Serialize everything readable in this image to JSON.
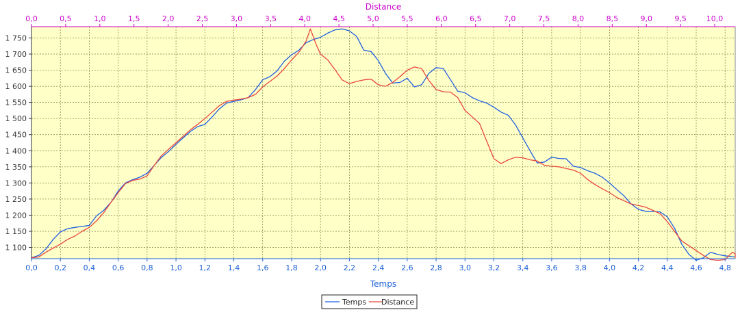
{
  "chart_data": {
    "type": "line",
    "xlabel_bottom": "Temps",
    "xlabel_top": "Distance",
    "ylabel": "",
    "colors": {
      "plot_background": "#ffffc8",
      "grid": "#7a7a4a",
      "bottom_axis": "#1a5fd6",
      "top_axis": "#cc00cc",
      "temps_series": "#1f5fe0",
      "distance_series": "#e8463c"
    },
    "grid": true,
    "legend_placement": "bottom-center",
    "bottom_axis": {
      "range": [
        0,
        4.87
      ],
      "ticks": [
        "0,0",
        "0,2",
        "0,4",
        "0,6",
        "0,8",
        "1,0",
        "1,2",
        "1,4",
        "1,6",
        "1,8",
        "2,0",
        "2,2",
        "2,4",
        "2,6",
        "2,8",
        "3,0",
        "3,2",
        "3,4",
        "3,6",
        "3,8",
        "4,0",
        "4,2",
        "4,4",
        "4,6",
        "4,8"
      ],
      "tick_values": [
        0,
        0.2,
        0.4,
        0.6,
        0.8,
        1.0,
        1.2,
        1.4,
        1.6,
        1.8,
        2.0,
        2.2,
        2.4,
        2.6,
        2.8,
        3.0,
        3.2,
        3.4,
        3.6,
        3.8,
        4.0,
        4.2,
        4.4,
        4.6,
        4.8
      ]
    },
    "top_axis": {
      "range": [
        0,
        10.3
      ],
      "ticks": [
        "0,0",
        "0,5",
        "1,0",
        "1,5",
        "2,0",
        "2,5",
        "3,0",
        "3,5",
        "4,0",
        "4,5",
        "5,0",
        "5,5",
        "6,0",
        "6,5",
        "7,0",
        "7,5",
        "8,0",
        "8,5",
        "9,0",
        "9,5",
        "10,0"
      ],
      "tick_values": [
        0,
        0.5,
        1.0,
        1.5,
        2.0,
        2.5,
        3.0,
        3.5,
        4.0,
        4.5,
        5.0,
        5.5,
        6.0,
        6.5,
        7.0,
        7.5,
        8.0,
        8.5,
        9.0,
        9.5,
        10.0
      ]
    },
    "y_axis": {
      "range": [
        1065,
        1785
      ],
      "ticks": [
        "1 100",
        "1 150",
        "1 200",
        "1 250",
        "1 300",
        "1 350",
        "1 400",
        "1 450",
        "1 500",
        "1 550",
        "1 600",
        "1 650",
        "1 700",
        "1 750"
      ],
      "tick_values": [
        1100,
        1150,
        1200,
        1250,
        1300,
        1350,
        1400,
        1450,
        1500,
        1550,
        1600,
        1650,
        1700,
        1750
      ]
    },
    "series": [
      {
        "name": "Temps",
        "axis": "bottom",
        "points": [
          [
            0,
            1068
          ],
          [
            0.05,
            1075
          ],
          [
            0.1,
            1095
          ],
          [
            0.15,
            1125
          ],
          [
            0.2,
            1148
          ],
          [
            0.25,
            1158
          ],
          [
            0.3,
            1162
          ],
          [
            0.35,
            1165
          ],
          [
            0.4,
            1168
          ],
          [
            0.45,
            1198
          ],
          [
            0.5,
            1215
          ],
          [
            0.55,
            1240
          ],
          [
            0.6,
            1275
          ],
          [
            0.65,
            1300
          ],
          [
            0.7,
            1310
          ],
          [
            0.75,
            1318
          ],
          [
            0.8,
            1330
          ],
          [
            0.85,
            1355
          ],
          [
            0.9,
            1380
          ],
          [
            0.95,
            1398
          ],
          [
            1.0,
            1420
          ],
          [
            1.05,
            1440
          ],
          [
            1.1,
            1460
          ],
          [
            1.15,
            1475
          ],
          [
            1.2,
            1482
          ],
          [
            1.25,
            1505
          ],
          [
            1.3,
            1530
          ],
          [
            1.35,
            1548
          ],
          [
            1.4,
            1553
          ],
          [
            1.45,
            1558
          ],
          [
            1.5,
            1565
          ],
          [
            1.55,
            1590
          ],
          [
            1.6,
            1620
          ],
          [
            1.65,
            1630
          ],
          [
            1.7,
            1648
          ],
          [
            1.75,
            1678
          ],
          [
            1.8,
            1698
          ],
          [
            1.85,
            1712
          ],
          [
            1.9,
            1735
          ],
          [
            1.95,
            1745
          ],
          [
            2.0,
            1752
          ],
          [
            2.05,
            1765
          ],
          [
            2.1,
            1775
          ],
          [
            2.15,
            1778
          ],
          [
            2.2,
            1772
          ],
          [
            2.25,
            1755
          ],
          [
            2.3,
            1712
          ],
          [
            2.35,
            1708
          ],
          [
            2.4,
            1680
          ],
          [
            2.45,
            1640
          ],
          [
            2.5,
            1610
          ],
          [
            2.55,
            1612
          ],
          [
            2.6,
            1625
          ],
          [
            2.65,
            1598
          ],
          [
            2.7,
            1605
          ],
          [
            2.75,
            1640
          ],
          [
            2.8,
            1658
          ],
          [
            2.85,
            1655
          ],
          [
            2.9,
            1620
          ],
          [
            2.95,
            1585
          ],
          [
            3.0,
            1580
          ],
          [
            3.05,
            1565
          ],
          [
            3.1,
            1555
          ],
          [
            3.15,
            1548
          ],
          [
            3.2,
            1535
          ],
          [
            3.25,
            1520
          ],
          [
            3.3,
            1510
          ],
          [
            3.35,
            1480
          ],
          [
            3.4,
            1440
          ],
          [
            3.45,
            1400
          ],
          [
            3.5,
            1362
          ],
          [
            3.55,
            1365
          ],
          [
            3.6,
            1380
          ],
          [
            3.65,
            1376
          ],
          [
            3.7,
            1375
          ],
          [
            3.75,
            1352
          ],
          [
            3.8,
            1348
          ],
          [
            3.85,
            1338
          ],
          [
            3.9,
            1330
          ],
          [
            3.95,
            1318
          ],
          [
            4.0,
            1300
          ],
          [
            4.05,
            1280
          ],
          [
            4.1,
            1260
          ],
          [
            4.15,
            1235
          ],
          [
            4.2,
            1218
          ],
          [
            4.25,
            1212
          ],
          [
            4.3,
            1212
          ],
          [
            4.35,
            1210
          ],
          [
            4.4,
            1195
          ],
          [
            4.45,
            1160
          ],
          [
            4.5,
            1110
          ],
          [
            4.55,
            1078
          ],
          [
            4.6,
            1060
          ],
          [
            4.65,
            1068
          ],
          [
            4.7,
            1085
          ],
          [
            4.75,
            1078
          ],
          [
            4.8,
            1074
          ],
          [
            4.87,
            1070
          ]
        ]
      },
      {
        "name": "Distance",
        "axis": "bottom",
        "points": [
          [
            0,
            1068
          ],
          [
            0.05,
            1070
          ],
          [
            0.1,
            1085
          ],
          [
            0.15,
            1098
          ],
          [
            0.2,
            1110
          ],
          [
            0.25,
            1125
          ],
          [
            0.3,
            1135
          ],
          [
            0.35,
            1150
          ],
          [
            0.4,
            1162
          ],
          [
            0.45,
            1182
          ],
          [
            0.5,
            1208
          ],
          [
            0.55,
            1240
          ],
          [
            0.6,
            1270
          ],
          [
            0.65,
            1298
          ],
          [
            0.7,
            1308
          ],
          [
            0.75,
            1312
          ],
          [
            0.8,
            1322
          ],
          [
            0.85,
            1355
          ],
          [
            0.9,
            1385
          ],
          [
            0.95,
            1405
          ],
          [
            1.0,
            1425
          ],
          [
            1.05,
            1445
          ],
          [
            1.1,
            1465
          ],
          [
            1.15,
            1482
          ],
          [
            1.2,
            1500
          ],
          [
            1.25,
            1520
          ],
          [
            1.3,
            1540
          ],
          [
            1.35,
            1553
          ],
          [
            1.4,
            1557
          ],
          [
            1.45,
            1560
          ],
          [
            1.5,
            1565
          ],
          [
            1.55,
            1575
          ],
          [
            1.6,
            1598
          ],
          [
            1.65,
            1615
          ],
          [
            1.7,
            1632
          ],
          [
            1.75,
            1655
          ],
          [
            1.8,
            1682
          ],
          [
            1.85,
            1705
          ],
          [
            1.9,
            1740
          ],
          [
            1.93,
            1778
          ],
          [
            1.97,
            1730
          ],
          [
            2.0,
            1700
          ],
          [
            2.05,
            1682
          ],
          [
            2.1,
            1652
          ],
          [
            2.15,
            1620
          ],
          [
            2.2,
            1608
          ],
          [
            2.25,
            1615
          ],
          [
            2.3,
            1620
          ],
          [
            2.35,
            1622
          ],
          [
            2.4,
            1605
          ],
          [
            2.45,
            1600
          ],
          [
            2.5,
            1612
          ],
          [
            2.55,
            1630
          ],
          [
            2.6,
            1650
          ],
          [
            2.65,
            1660
          ],
          [
            2.7,
            1655
          ],
          [
            2.75,
            1618
          ],
          [
            2.8,
            1590
          ],
          [
            2.85,
            1583
          ],
          [
            2.9,
            1582
          ],
          [
            2.95,
            1565
          ],
          [
            3.0,
            1525
          ],
          [
            3.05,
            1505
          ],
          [
            3.1,
            1485
          ],
          [
            3.15,
            1430
          ],
          [
            3.2,
            1375
          ],
          [
            3.25,
            1360
          ],
          [
            3.3,
            1372
          ],
          [
            3.35,
            1380
          ],
          [
            3.4,
            1378
          ],
          [
            3.45,
            1372
          ],
          [
            3.5,
            1368
          ],
          [
            3.55,
            1355
          ],
          [
            3.6,
            1352
          ],
          [
            3.65,
            1350
          ],
          [
            3.7,
            1345
          ],
          [
            3.75,
            1340
          ],
          [
            3.8,
            1330
          ],
          [
            3.85,
            1310
          ],
          [
            3.9,
            1295
          ],
          [
            3.95,
            1282
          ],
          [
            4.0,
            1270
          ],
          [
            4.05,
            1255
          ],
          [
            4.1,
            1245
          ],
          [
            4.15,
            1235
          ],
          [
            4.2,
            1230
          ],
          [
            4.25,
            1225
          ],
          [
            4.3,
            1215
          ],
          [
            4.35,
            1205
          ],
          [
            4.4,
            1180
          ],
          [
            4.45,
            1150
          ],
          [
            4.5,
            1120
          ],
          [
            4.55,
            1105
          ],
          [
            4.6,
            1090
          ],
          [
            4.65,
            1075
          ],
          [
            4.7,
            1062
          ],
          [
            4.75,
            1060
          ],
          [
            4.8,
            1062
          ],
          [
            4.85,
            1085
          ],
          [
            4.9,
            1080
          ],
          [
            4.95,
            1072
          ],
          [
            5.0,
            1068
          ]
        ]
      }
    ]
  }
}
